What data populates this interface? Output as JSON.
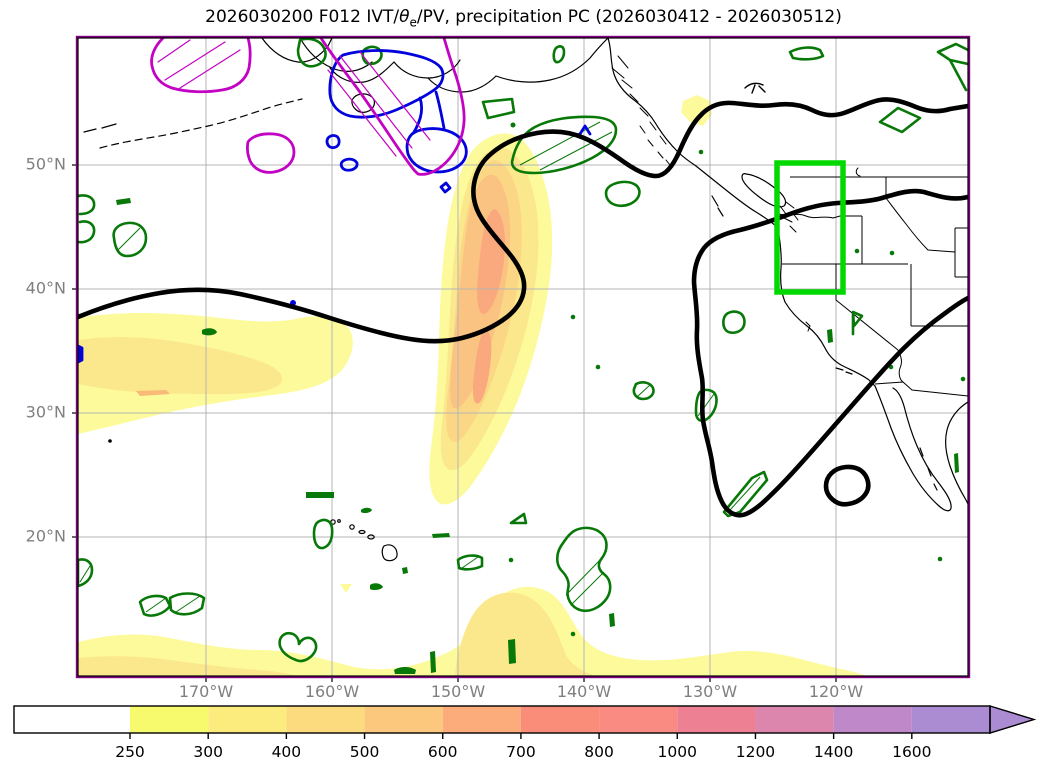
{
  "title": {
    "prefix": "2026030200 F012 IVT/",
    "theta": "θ",
    "theta_sub": "e",
    "suffix": "/PV, precipitation PC (2026030412 - 2026030512)"
  },
  "axes": {
    "lat_ticks": [
      {
        "value": 50,
        "label": "50°N"
      },
      {
        "value": 40,
        "label": "40°N"
      },
      {
        "value": 30,
        "label": "30°N"
      },
      {
        "value": 20,
        "label": "20°N"
      }
    ],
    "lon_ticks": [
      {
        "value": 170,
        "label": "170°W"
      },
      {
        "value": 160,
        "label": "160°W"
      },
      {
        "value": 150,
        "label": "150°W"
      },
      {
        "value": 140,
        "label": "140°W"
      },
      {
        "value": 130,
        "label": "130°W"
      },
      {
        "value": 120,
        "label": "120°W"
      }
    ],
    "grid_color": "#b5b5b5",
    "label_color": "#7f7f7f"
  },
  "colorbar": {
    "tick_labels": [
      "250",
      "300",
      "400",
      "500",
      "600",
      "700",
      "800",
      "1000",
      "1200",
      "1400",
      "1600"
    ],
    "segment_colors": [
      "#ffffff",
      "#f8fa6d",
      "#fcec7d",
      "#fcdb7f",
      "#fcc87d",
      "#fbac7a",
      "#fa8d79",
      "#fa8b82",
      "#ee8093",
      "#dc85ad",
      "#bf88c9",
      "#ab8bd1"
    ],
    "arrow_color": "#ab8bd1",
    "extend": "max"
  },
  "map": {
    "frame_colors": {
      "outer": "#800080",
      "inner": "#000000"
    },
    "target_box_color": "#00d800",
    "contour_colors": {
      "thick_black": "#000000",
      "green_hatched": "#087808",
      "blue": "#0202dd",
      "magenta_hatched": "#c303c3"
    },
    "fill_colors": {
      "level_250": "#fdfa9c",
      "level_300": "#fbe88c",
      "level_400": "#fbd785",
      "level_500": "#fbc382",
      "level_600": "#f9a97d"
    }
  },
  "chart_data": {
    "type": "contour_map",
    "title": "2026030200 F012 IVT/θe/PV, precipitation PC (2026030412 - 2026030512)",
    "projection": "equirectangular",
    "lon_range_deg_west": [
      180.5,
      109.5
    ],
    "lat_range_deg_north": [
      9,
      60.5
    ],
    "x_tick_labels": [
      "170°W",
      "160°W",
      "150°W",
      "140°W",
      "130°W",
      "120°W"
    ],
    "y_tick_labels": [
      "50°N",
      "40°N",
      "30°N",
      "20°N"
    ],
    "grid": true,
    "colorbar": {
      "orientation": "horizontal",
      "extend": "max",
      "tick_values": [
        250,
        300,
        400,
        500,
        600,
        700,
        800,
        1000,
        1200,
        1400,
        1600
      ],
      "segment_colors": [
        "#ffffff",
        "#f8fa6d",
        "#fcec7d",
        "#fcdb7f",
        "#fcc87d",
        "#fbac7a",
        "#fa8d79",
        "#fa8b82",
        "#ee8093",
        "#dc85ad",
        "#bf88c9",
        "#ab8bd1"
      ]
    },
    "layers": [
      {
        "name": "ivt-shading",
        "style": "filled contours, yellow-orange",
        "features": [
          {
            "feature": "AR plume",
            "approx_center_lon_w": 150,
            "approx_lat_span_n": [
              25,
              49
            ],
            "max_level_reached": "600-700"
          },
          {
            "feature": "west patch at left edge",
            "approx_lat_n": [
              30,
              38
            ],
            "max_level_reached": "400"
          },
          {
            "feature": "southern band along bottom edge",
            "approx_lat_n": [
              9,
              16
            ],
            "max_level_reached": "300-400"
          },
          {
            "feature": "small spot near Alaska panhandle",
            "approx_lon_w": 136,
            "approx_lat_n": 55
          }
        ]
      },
      {
        "name": "thick-black-contours",
        "style": "solid black, heavy",
        "features": [
          "long sinuous contour from west edge (~37N) looping around the AR plume then east along ~55N to the map edge",
          "large closed loop over the US West / eastern Pacific (~128W-110W, 22N-44N)",
          "small closed oval near 118W, 24N"
        ]
      },
      {
        "name": "green-contours",
        "style": "dark green, some regions hatched",
        "note": "many small scattered cells over the N Pacific, Gulf of Alaska, Hawaii region and US West"
      },
      {
        "name": "blue-contours",
        "style": "blue closed cells near Alaska Peninsula (~52-57N, 152-162W)"
      },
      {
        "name": "magenta-contours",
        "style": "magenta hatched regions along the top edge near 58-60N"
      },
      {
        "name": "target-region-box",
        "style": "bright green rectangle",
        "approx_bounds": {
          "lon_w": [
            125,
            119.5
          ],
          "lat_n": [
            40,
            50.2
          ]
        }
      }
    ]
  }
}
